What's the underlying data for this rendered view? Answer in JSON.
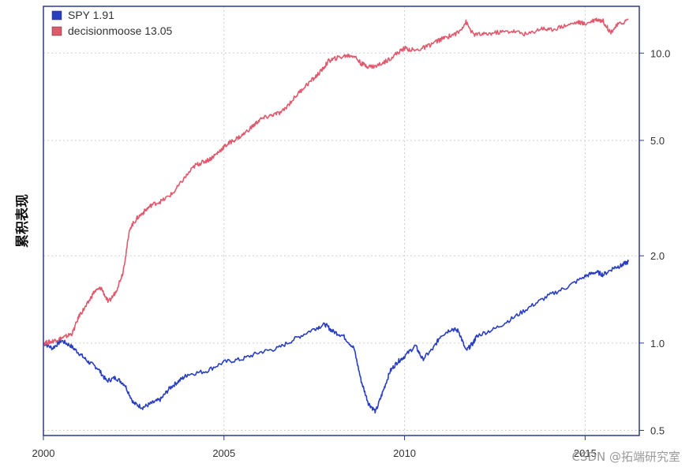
{
  "chart_data": {
    "type": "line",
    "ylabel": "累积表现",
    "xlabel": "",
    "title": "",
    "y_scale": "log",
    "ylim": [
      0.48,
      14.5
    ],
    "xlim": [
      2000.0,
      2016.5
    ],
    "x_ticks": [
      2000,
      2005,
      2010,
      2015
    ],
    "x_tick_labels": [
      "2000",
      "2005",
      "2010",
      "2015"
    ],
    "y_ticks": [
      0.5,
      1.0,
      2.0,
      5.0,
      10.0
    ],
    "y_tick_labels": [
      "0.5",
      "1.0",
      "2.0",
      "5.0",
      "10.0"
    ],
    "grid": true,
    "legend_position": "top-left",
    "series": [
      {
        "name": "SPY",
        "final_value_label": "1.91",
        "color": "#2a3fbf",
        "x": [
          2000.0,
          2000.25,
          2000.5,
          2000.75,
          2001.0,
          2001.25,
          2001.5,
          2001.75,
          2002.0,
          2002.25,
          2002.5,
          2002.75,
          2003.0,
          2003.25,
          2003.5,
          2003.75,
          2004.0,
          2004.5,
          2005.0,
          2005.5,
          2006.0,
          2006.5,
          2007.0,
          2007.5,
          2007.8,
          2008.0,
          2008.3,
          2008.6,
          2008.8,
          2009.0,
          2009.2,
          2009.4,
          2009.6,
          2009.8,
          2010.0,
          2010.3,
          2010.5,
          2010.8,
          2011.0,
          2011.3,
          2011.5,
          2011.7,
          2011.9,
          2012.0,
          2012.5,
          2013.0,
          2013.5,
          2014.0,
          2014.5,
          2015.0,
          2015.3,
          2015.5,
          2015.8,
          2016.0,
          2016.2
        ],
        "y": [
          1.0,
          0.96,
          1.02,
          0.98,
          0.92,
          0.86,
          0.82,
          0.74,
          0.76,
          0.72,
          0.62,
          0.6,
          0.62,
          0.64,
          0.7,
          0.74,
          0.78,
          0.8,
          0.86,
          0.88,
          0.93,
          0.96,
          1.04,
          1.12,
          1.16,
          1.1,
          1.06,
          0.96,
          0.74,
          0.62,
          0.58,
          0.68,
          0.8,
          0.86,
          0.9,
          0.98,
          0.88,
          0.96,
          1.06,
          1.12,
          1.1,
          0.94,
          1.0,
          1.06,
          1.12,
          1.22,
          1.34,
          1.46,
          1.56,
          1.7,
          1.76,
          1.72,
          1.82,
          1.85,
          1.91
        ]
      },
      {
        "name": "decisionmoose",
        "final_value_label": "13.05",
        "color": "#e05a6e",
        "x": [
          2000.0,
          2000.2,
          2000.4,
          2000.6,
          2000.8,
          2001.0,
          2001.2,
          2001.4,
          2001.6,
          2001.8,
          2002.0,
          2002.2,
          2002.4,
          2002.6,
          2002.8,
          2003.0,
          2003.3,
          2003.6,
          2003.9,
          2004.2,
          2004.4,
          2004.6,
          2004.8,
          2005.0,
          2005.2,
          2005.5,
          2005.8,
          2006.0,
          2006.3,
          2006.6,
          2006.9,
          2007.2,
          2007.5,
          2007.7,
          2007.9,
          2008.1,
          2008.4,
          2008.6,
          2008.8,
          2009.0,
          2009.2,
          2009.5,
          2009.8,
          2010.0,
          2010.3,
          2010.6,
          2010.9,
          2011.2,
          2011.5,
          2011.7,
          2011.9,
          2012.2,
          2012.6,
          2013.0,
          2013.4,
          2013.8,
          2014.0,
          2014.4,
          2014.8,
          2015.0,
          2015.3,
          2015.5,
          2015.7,
          2015.9,
          2016.2
        ],
        "y": [
          1.0,
          1.01,
          1.03,
          1.05,
          1.08,
          1.25,
          1.35,
          1.5,
          1.55,
          1.38,
          1.5,
          1.75,
          2.5,
          2.7,
          2.85,
          3.0,
          3.1,
          3.3,
          3.7,
          4.1,
          4.2,
          4.3,
          4.5,
          4.75,
          4.95,
          5.2,
          5.6,
          5.9,
          6.1,
          6.25,
          6.9,
          7.6,
          8.2,
          8.7,
          9.4,
          9.6,
          9.8,
          9.8,
          9.2,
          9.0,
          9.0,
          9.4,
          10.0,
          10.4,
          10.2,
          10.5,
          11.0,
          11.4,
          11.8,
          12.8,
          11.6,
          11.6,
          11.8,
          11.9,
          11.6,
          12.2,
          12.0,
          12.4,
          12.8,
          12.6,
          13.1,
          12.9,
          11.8,
          12.5,
          13.05
        ]
      }
    ]
  },
  "watermark": "CSDN @拓端研究室"
}
